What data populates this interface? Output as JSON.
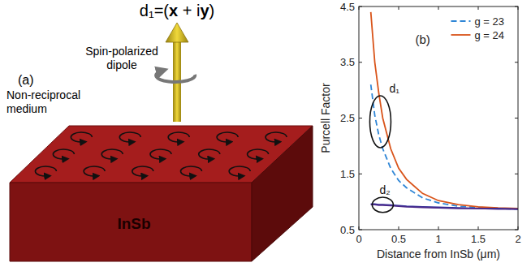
{
  "diagram": {
    "panel_label": "(a)",
    "dipole_label": "d₁=(x + iy)",
    "dipole_caption": "Spin-polarized dipole",
    "medium_caption": "Non-reciprocal medium",
    "material": "InSb"
  },
  "chart_data": {
    "type": "line",
    "panel_label": "(b)",
    "x_label": "Distance from InSb (μm)",
    "y_label": "Purcell Factor",
    "x": [
      0.15,
      0.2,
      0.25,
      0.3,
      0.4,
      0.5,
      0.6,
      0.8,
      1.0,
      1.25,
      1.5,
      1.75,
      2.0
    ],
    "xlim": [
      0,
      2
    ],
    "ylim": [
      0.5,
      4.5
    ],
    "xticks": [
      0,
      0.5,
      1,
      1.5,
      2
    ],
    "yticks": [
      0.5,
      1.5,
      2.5,
      3.5,
      4.5
    ],
    "grid": false,
    "legend": "upper right",
    "series": [
      {
        "name": "g = 23",
        "color": "#2f86d6",
        "line_style": "dashed",
        "values": [
          3.1,
          2.55,
          2.2,
          1.95,
          1.6,
          1.38,
          1.25,
          1.07,
          0.98,
          0.92,
          0.9,
          0.88,
          0.87
        ]
      },
      {
        "name": "g = 24",
        "color": "#d9541a",
        "line_style": "solid",
        "values": [
          4.4,
          3.5,
          2.95,
          2.5,
          1.95,
          1.6,
          1.4,
          1.15,
          1.02,
          0.95,
          0.91,
          0.89,
          0.88
        ]
      },
      {
        "name": "g = 23",
        "color": "#2b2f9e",
        "line_style": "solid",
        "values": [
          0.96,
          0.96,
          0.95,
          0.95,
          0.94,
          0.93,
          0.92,
          0.91,
          0.9,
          0.89,
          0.88,
          0.88,
          0.87
        ]
      },
      {
        "name": "g = 24",
        "color": "#4b2a8a",
        "line_style": "solid",
        "values": [
          0.95,
          0.95,
          0.94,
          0.94,
          0.93,
          0.92,
          0.91,
          0.9,
          0.89,
          0.88,
          0.88,
          0.87,
          0.87
        ]
      }
    ],
    "annotations": [
      {
        "text": "d₁",
        "x": 0.27,
        "series": [
          0,
          1
        ]
      },
      {
        "text": "d₂",
        "x": 0.3,
        "series": [
          2,
          3
        ]
      }
    ]
  }
}
